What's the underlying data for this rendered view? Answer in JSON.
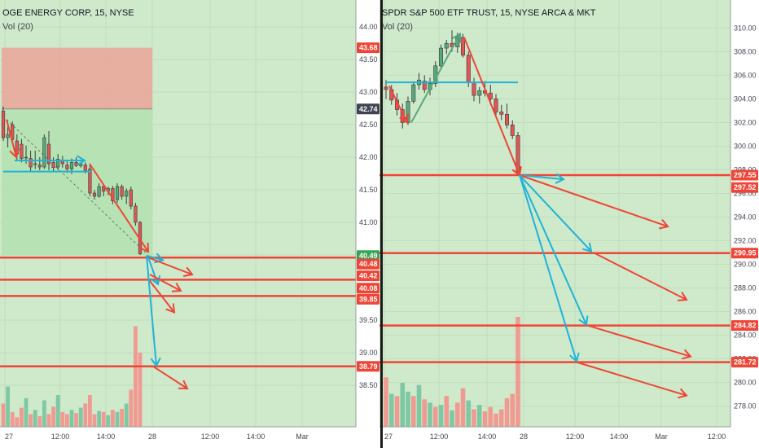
{
  "colors": {
    "background": "#cfe9cb",
    "axis_bg": "#ffffff",
    "grid": "#e0e3eb",
    "up": "#58a87b",
    "down": "#e05555",
    "red_line": "#ef4536",
    "cyan_line": "#1fb3d8",
    "price_tag": "#ef4536",
    "current_tag": "#37a354",
    "last_tag": "#3f4450",
    "vol_up": "#7ec8a4",
    "vol_down": "#f19a92",
    "risk_box": "#e8a99a",
    "reward_box": "#b7e3b4"
  },
  "chart_data": [
    {
      "type": "candlestick",
      "title": "OGE ENERGY CORP, 15, NYSE",
      "subtitle": "Vol (20)",
      "y_ticks": [
        "44.00",
        "43.50",
        "43.00",
        "42.50",
        "42.00",
        "41.50",
        "41.00",
        "40.50",
        "39.50",
        "39.00",
        "38.50"
      ],
      "x_ticks": [
        "27",
        "12:00",
        "14:00",
        "28",
        "12:00",
        "14:00",
        "Mar"
      ],
      "ylim": [
        38.1,
        44.2
      ],
      "price_tags": [
        {
          "label": "43.68",
          "value": 43.68,
          "style": "red"
        },
        {
          "label": "42.74",
          "value": 42.74,
          "style": "dark"
        },
        {
          "label": "40.49",
          "value": 40.49,
          "style": "green"
        },
        {
          "label": "40.48",
          "value": 40.36,
          "style": "red"
        },
        {
          "label": "40.42",
          "value": 40.18,
          "style": "red"
        },
        {
          "label": "40.08",
          "value": 39.99,
          "style": "red"
        },
        {
          "label": "39.85",
          "value": 39.82,
          "style": "red"
        },
        {
          "label": "38.79",
          "value": 38.79,
          "style": "red"
        }
      ],
      "horizontal_lines": [
        40.46,
        40.12,
        39.87,
        38.79
      ],
      "ohlc": [
        [
          42.71,
          42.78,
          42.25,
          42.3
        ],
        [
          42.3,
          42.52,
          42.15,
          42.35
        ],
        [
          42.5,
          42.55,
          42.2,
          42.27
        ],
        [
          42.25,
          42.35,
          41.95,
          42.05
        ],
        [
          42.2,
          42.28,
          41.92,
          41.98
        ],
        [
          42.0,
          42.18,
          41.9,
          42.0
        ],
        [
          41.98,
          42.1,
          41.78,
          41.85
        ],
        [
          41.9,
          42.1,
          41.82,
          41.9
        ],
        [
          41.88,
          42.0,
          41.8,
          41.85
        ],
        [
          41.85,
          42.35,
          41.82,
          42.3
        ],
        [
          42.2,
          42.4,
          41.8,
          41.9
        ],
        [
          41.92,
          42.0,
          41.78,
          41.84
        ],
        [
          41.85,
          42.05,
          41.8,
          41.97
        ],
        [
          41.95,
          42.02,
          41.84,
          41.9
        ],
        [
          41.88,
          41.95,
          41.76,
          41.82
        ],
        [
          41.82,
          41.98,
          41.74,
          41.92
        ],
        [
          41.92,
          42.0,
          41.85,
          41.87
        ],
        [
          41.87,
          41.93,
          41.84,
          41.9
        ],
        [
          41.88,
          41.92,
          41.75,
          41.78
        ],
        [
          41.82,
          41.88,
          41.4,
          41.45
        ],
        [
          41.45,
          41.5,
          41.35,
          41.4
        ],
        [
          41.4,
          41.6,
          41.38,
          41.55
        ],
        [
          41.55,
          41.58,
          41.4,
          41.48
        ],
        [
          41.48,
          41.55,
          41.42,
          41.52
        ],
        [
          41.52,
          41.56,
          41.28,
          41.33
        ],
        [
          41.35,
          41.6,
          41.3,
          41.55
        ],
        [
          41.55,
          41.58,
          41.35,
          41.4
        ],
        [
          41.4,
          41.52,
          41.28,
          41.48
        ],
        [
          41.5,
          41.55,
          41.2,
          41.25
        ],
        [
          41.25,
          41.3,
          40.95,
          41.0
        ],
        [
          41.0,
          41.02,
          40.5,
          40.52
        ]
      ],
      "volume": [
        22,
        38,
        14,
        9,
        18,
        27,
        12,
        16,
        10,
        25,
        12,
        19,
        30,
        14,
        12,
        16,
        13,
        18,
        22,
        30,
        12,
        15,
        14,
        11,
        16,
        14,
        17,
        22,
        35,
        95,
        70
      ],
      "volume_up": [
        false,
        true,
        false,
        false,
        false,
        true,
        false,
        true,
        false,
        true,
        false,
        false,
        true,
        false,
        false,
        true,
        false,
        true,
        false,
        false,
        false,
        true,
        false,
        true,
        false,
        true,
        false,
        true,
        false,
        false,
        false
      ]
    },
    {
      "type": "candlestick",
      "title": "SPDR S&P 500 ETF TRUST, 15, NYSE ARCA & MKT",
      "subtitle": "Vol (20)",
      "y_ticks": [
        "310.00",
        "308.00",
        "306.00",
        "304.00",
        "302.00",
        "300.00",
        "298.00",
        "296.00",
        "294.00",
        "292.00",
        "290.00",
        "288.00",
        "286.00",
        "284.00",
        "282.00",
        "280.00",
        "278.00"
      ],
      "x_ticks": [
        "27",
        "12:00",
        "14:00",
        "28",
        "12:00",
        "14:00",
        "Mar",
        "12:00"
      ],
      "ylim": [
        276.8,
        311.2
      ],
      "price_tags": [
        {
          "label": "297.55",
          "value": 297.55,
          "style": "red"
        },
        {
          "label": "297.52",
          "value": 296.5,
          "style": "red"
        },
        {
          "label": "290.95",
          "value": 290.95,
          "style": "red"
        },
        {
          "label": "284.82",
          "value": 284.82,
          "style": "red"
        },
        {
          "label": "281.72",
          "value": 281.72,
          "style": "red"
        }
      ],
      "horizontal_lines": [
        297.55,
        290.95,
        284.82,
        281.72
      ],
      "ohlc": [
        [
          305.0,
          305.6,
          304.0,
          304.8
        ],
        [
          304.8,
          305.2,
          303.5,
          303.9
        ],
        [
          303.9,
          304.5,
          302.6,
          303.1
        ],
        [
          303.1,
          303.6,
          301.5,
          302.0
        ],
        [
          302.0,
          304.2,
          301.8,
          303.8
        ],
        [
          303.8,
          305.5,
          303.6,
          305.2
        ],
        [
          305.2,
          306.2,
          304.8,
          305.6
        ],
        [
          305.5,
          306.0,
          304.5,
          304.8
        ],
        [
          304.8,
          305.8,
          304.3,
          305.3
        ],
        [
          305.3,
          307.2,
          305.0,
          306.8
        ],
        [
          306.8,
          308.6,
          306.5,
          308.3
        ],
        [
          308.3,
          309.0,
          307.8,
          308.7
        ],
        [
          308.7,
          309.8,
          308.0,
          308.4
        ],
        [
          308.4,
          309.6,
          307.9,
          309.2
        ],
        [
          309.2,
          309.5,
          307.5,
          307.7
        ],
        [
          307.7,
          308.0,
          305.0,
          305.4
        ],
        [
          305.4,
          305.8,
          303.8,
          304.3
        ],
        [
          304.3,
          305.0,
          303.6,
          304.7
        ],
        [
          304.7,
          305.5,
          304.2,
          304.5
        ],
        [
          304.5,
          305.2,
          303.5,
          304.0
        ],
        [
          304.0,
          304.4,
          302.6,
          302.9
        ],
        [
          302.9,
          303.5,
          302.2,
          302.7
        ],
        [
          302.7,
          303.6,
          301.5,
          301.8
        ],
        [
          301.8,
          302.2,
          300.6,
          300.9
        ],
        [
          300.9,
          301.2,
          297.6,
          297.8
        ]
      ],
      "volume": [
        45,
        30,
        28,
        40,
        32,
        28,
        38,
        25,
        22,
        18,
        20,
        28,
        15,
        22,
        35,
        24,
        16,
        20,
        14,
        18,
        12,
        16,
        26,
        30,
        100
      ],
      "volume_up": [
        false,
        true,
        false,
        true,
        true,
        false,
        true,
        false,
        true,
        false,
        true,
        false,
        true,
        false,
        false,
        true,
        false,
        true,
        false,
        false,
        false,
        false,
        false,
        false,
        false
      ]
    }
  ]
}
